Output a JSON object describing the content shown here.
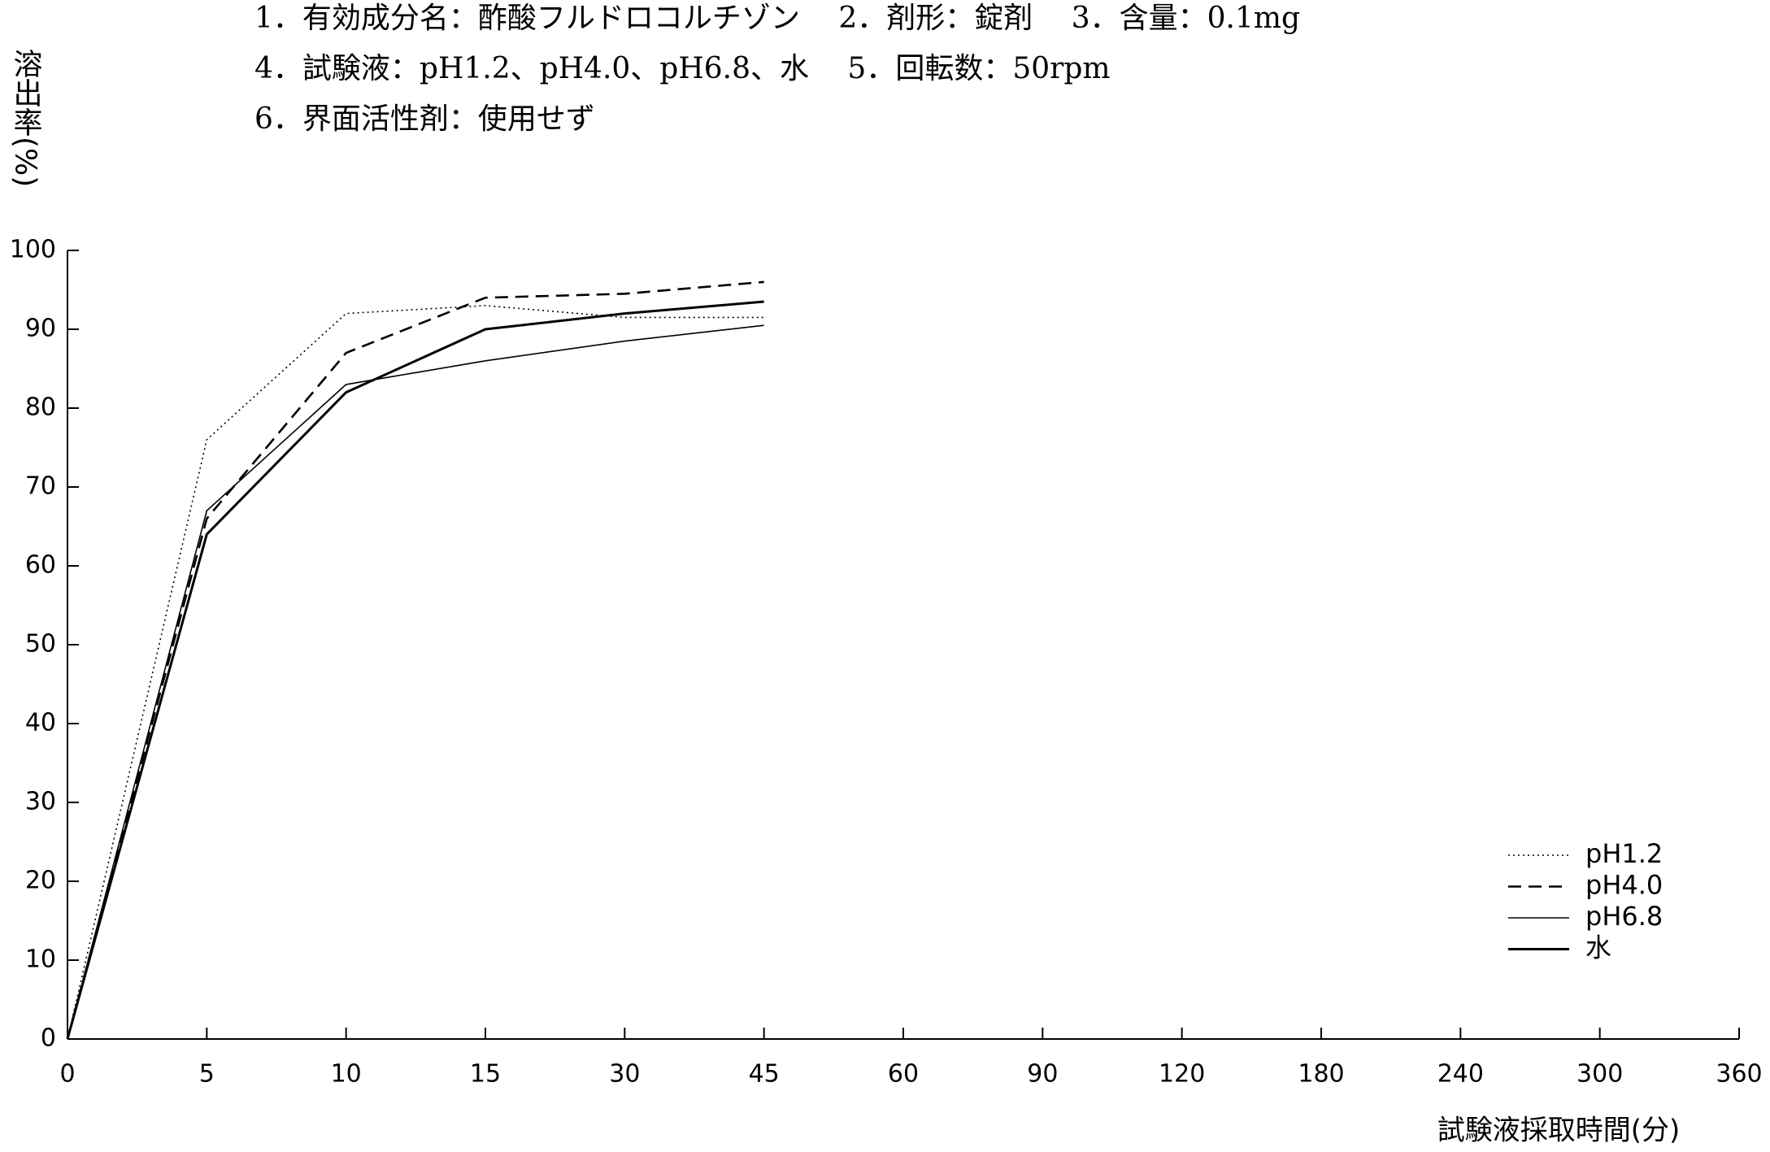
{
  "chart_data": {
    "type": "line",
    "annotations": [
      "1．有効成分名：酢酸フルドロコルチゾン　 2．剤形：錠剤　 3．含量：0.1mg",
      "4．試験液：pH1.2、pH4.0、pH6.8、水　 5．回転数：50rpm",
      "6．界面活性剤：使用せず"
    ],
    "y_label": "溶出率(%)",
    "x_label": "試験液採取時間(分)",
    "categories": [
      "0",
      "5",
      "10",
      "15",
      "30",
      "45",
      "60",
      "90",
      "120",
      "180",
      "240",
      "300",
      "360"
    ],
    "series": [
      {
        "name": "pH1.2",
        "color": "#000000",
        "style": "dotted",
        "values": [
          0,
          76,
          92,
          93,
          91.5,
          91.5,
          null,
          null,
          null,
          null,
          null,
          null,
          null
        ]
      },
      {
        "name": "pH4.0",
        "color": "#000000",
        "style": "dashed",
        "values": [
          0,
          66,
          87,
          94,
          94.5,
          96,
          null,
          null,
          null,
          null,
          null,
          null,
          null
        ]
      },
      {
        "name": "pH6.8",
        "color": "#000000",
        "style": "thin",
        "values": [
          0,
          67,
          83,
          86,
          88.5,
          90.5,
          null,
          null,
          null,
          null,
          null,
          null,
          null
        ]
      },
      {
        "name": "水",
        "color": "#000000",
        "style": "solid",
        "values": [
          0,
          64,
          82,
          90,
          92,
          93.5,
          null,
          null,
          null,
          null,
          null,
          null,
          null
        ]
      }
    ],
    "ylim": [
      0,
      100
    ],
    "yticks": [
      0,
      10,
      20,
      30,
      40,
      50,
      60,
      70,
      80,
      90,
      100
    ],
    "grid": false,
    "legend": "lower right"
  }
}
